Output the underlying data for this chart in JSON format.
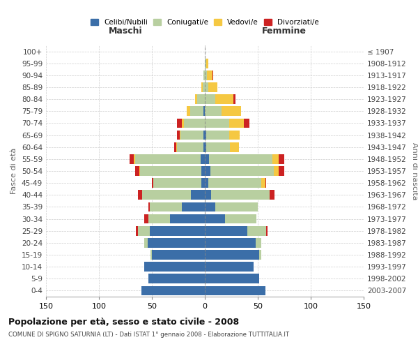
{
  "age_groups": [
    "0-4",
    "5-9",
    "10-14",
    "15-19",
    "20-24",
    "25-29",
    "30-34",
    "35-39",
    "40-44",
    "45-49",
    "50-54",
    "55-59",
    "60-64",
    "65-69",
    "70-74",
    "75-79",
    "80-84",
    "85-89",
    "90-94",
    "95-99",
    "100+"
  ],
  "birth_years": [
    "2003-2007",
    "1998-2002",
    "1993-1997",
    "1988-1992",
    "1983-1987",
    "1978-1982",
    "1973-1977",
    "1968-1972",
    "1963-1967",
    "1958-1962",
    "1953-1957",
    "1948-1952",
    "1943-1947",
    "1938-1942",
    "1933-1937",
    "1928-1932",
    "1923-1927",
    "1918-1922",
    "1913-1917",
    "1908-1912",
    "≤ 1907"
  ],
  "males": {
    "celibi": [
      60,
      53,
      57,
      50,
      54,
      52,
      33,
      22,
      13,
      3,
      3,
      4,
      1,
      1,
      0,
      1,
      0,
      0,
      0,
      0,
      0
    ],
    "coniugati": [
      0,
      0,
      0,
      1,
      3,
      11,
      20,
      30,
      46,
      46,
      58,
      62,
      25,
      22,
      20,
      13,
      7,
      2,
      1,
      0,
      0
    ],
    "vedovi": [
      0,
      0,
      0,
      0,
      0,
      0,
      0,
      0,
      0,
      0,
      1,
      1,
      1,
      1,
      2,
      3,
      2,
      1,
      0,
      0,
      0
    ],
    "divorziati": [
      0,
      0,
      0,
      0,
      0,
      2,
      4,
      1,
      4,
      1,
      4,
      4,
      2,
      2,
      4,
      0,
      0,
      0,
      0,
      0,
      0
    ]
  },
  "females": {
    "nubili": [
      57,
      51,
      46,
      51,
      48,
      40,
      19,
      10,
      6,
      3,
      5,
      4,
      1,
      1,
      0,
      0,
      0,
      0,
      0,
      0,
      0
    ],
    "coniugate": [
      0,
      0,
      0,
      2,
      5,
      18,
      30,
      40,
      55,
      50,
      60,
      60,
      23,
      22,
      23,
      16,
      10,
      3,
      2,
      1,
      0
    ],
    "vedove": [
      0,
      0,
      0,
      0,
      0,
      0,
      0,
      0,
      0,
      4,
      5,
      6,
      8,
      10,
      14,
      18,
      17,
      9,
      5,
      2,
      0
    ],
    "divorziate": [
      0,
      0,
      0,
      0,
      0,
      1,
      0,
      0,
      5,
      1,
      5,
      5,
      0,
      0,
      5,
      0,
      2,
      0,
      1,
      0,
      0
    ]
  },
  "colors": {
    "celibi": "#3b6ea8",
    "coniugati": "#b8cfa0",
    "vedovi": "#f5c842",
    "divorziati": "#cc2222"
  },
  "title": "Popolazione per età, sesso e stato civile - 2008",
  "subtitle": "COMUNE DI SPIGNO SATURNIA (LT) - Dati ISTAT 1° gennaio 2008 - Elaborazione TUTTITALIA.IT",
  "xlabel_left": "Maschi",
  "xlabel_right": "Femmine",
  "ylabel_left": "Fasce di età",
  "ylabel_right": "Anni di nascita",
  "xlim": 150,
  "legend_labels": [
    "Celibi/Nubili",
    "Coniugati/e",
    "Vedovi/e",
    "Divorziati/e"
  ]
}
